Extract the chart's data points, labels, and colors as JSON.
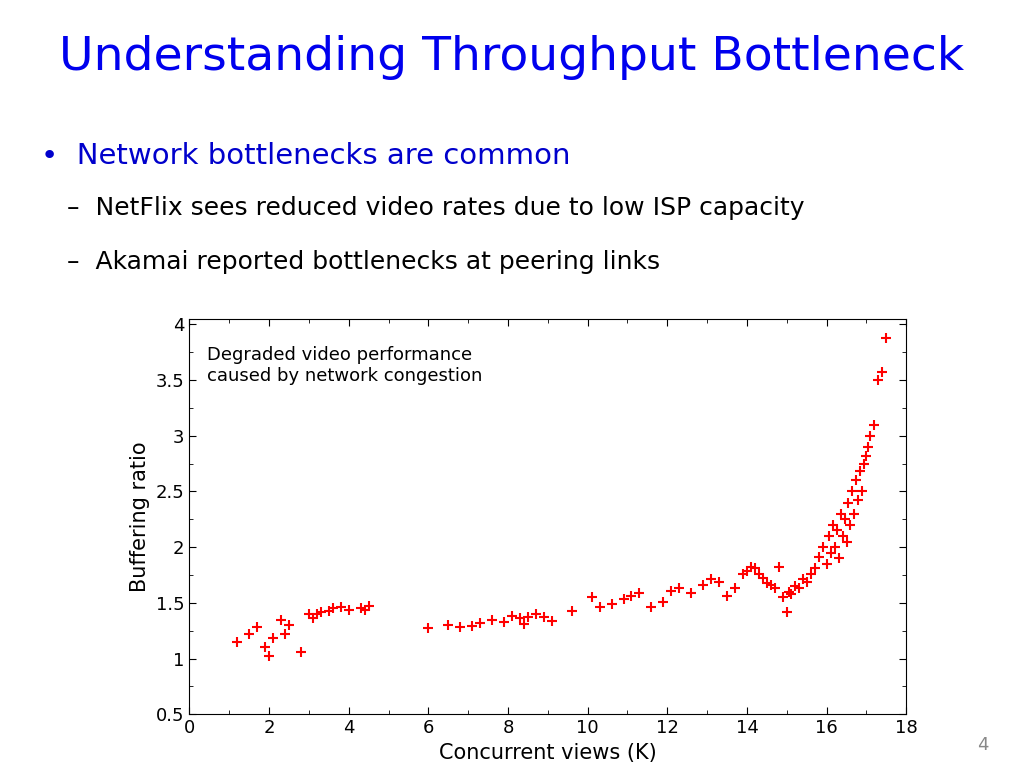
{
  "title": "Understanding Throughput Bottleneck",
  "title_color": "#0000EE",
  "title_fontsize": 34,
  "bullet_color": "#0000CC",
  "bullet_fontsize": 21,
  "sub_bullet_fontsize": 18,
  "background_color": "#FFFFFF",
  "bullet1": "Network bottlenecks are common",
  "sub1": "NetFlix sees reduced video rates due to low ISP capacity",
  "sub2": "Akamai reported bottlenecks at peering links",
  "xlabel": "Concurrent views (K)",
  "ylabel": "Buffering ratio",
  "annotation": "Degraded video performance\ncaused by network congestion",
  "xlim": [
    0,
    18
  ],
  "ylim": [
    0.5,
    4.05
  ],
  "xticks": [
    0,
    2,
    4,
    6,
    8,
    10,
    12,
    14,
    16,
    18
  ],
  "ytick_vals": [
    0.5,
    1.0,
    1.5,
    2.0,
    2.5,
    3.0,
    3.5,
    4.0
  ],
  "ytick_labels": [
    "0.5",
    "1",
    "1.5",
    "2",
    "2.5",
    "3",
    "3.5",
    "4"
  ],
  "scatter_color": "#FF0000",
  "page_number": "4",
  "scatter_x": [
    1.2,
    1.5,
    1.7,
    1.9,
    2.1,
    2.0,
    2.3,
    2.5,
    2.4,
    2.8,
    3.0,
    3.1,
    3.3,
    3.2,
    3.5,
    3.6,
    3.8,
    4.0,
    4.3,
    4.5,
    4.4,
    6.0,
    6.5,
    6.8,
    7.1,
    7.3,
    7.6,
    7.9,
    8.1,
    8.3,
    8.5,
    8.4,
    8.7,
    8.9,
    9.1,
    9.6,
    10.1,
    10.3,
    10.6,
    10.9,
    11.1,
    11.3,
    11.6,
    11.9,
    12.1,
    12.3,
    12.6,
    12.9,
    13.1,
    13.3,
    13.5,
    13.7,
    13.9,
    14.0,
    14.1,
    14.2,
    14.3,
    14.4,
    14.5,
    14.6,
    14.7,
    14.8,
    14.9,
    15.0,
    15.05,
    15.1,
    15.2,
    15.3,
    15.4,
    15.5,
    15.6,
    15.7,
    15.8,
    15.9,
    16.0,
    16.05,
    16.1,
    16.15,
    16.2,
    16.25,
    16.3,
    16.35,
    16.4,
    16.45,
    16.5,
    16.55,
    16.6,
    16.65,
    16.7,
    16.75,
    16.8,
    16.85,
    16.9,
    16.95,
    17.0,
    17.05,
    17.1,
    17.2,
    17.3,
    17.4,
    17.5
  ],
  "scatter_y": [
    1.15,
    1.22,
    1.28,
    1.1,
    1.18,
    1.02,
    1.35,
    1.3,
    1.22,
    1.06,
    1.4,
    1.36,
    1.42,
    1.4,
    1.43,
    1.45,
    1.46,
    1.44,
    1.45,
    1.47,
    1.44,
    1.27,
    1.3,
    1.28,
    1.29,
    1.32,
    1.35,
    1.33,
    1.38,
    1.36,
    1.37,
    1.31,
    1.4,
    1.37,
    1.34,
    1.43,
    1.55,
    1.46,
    1.49,
    1.53,
    1.56,
    1.59,
    1.46,
    1.51,
    1.61,
    1.63,
    1.59,
    1.66,
    1.71,
    1.69,
    1.56,
    1.63,
    1.76,
    1.79,
    1.82,
    1.81,
    1.76,
    1.72,
    1.68,
    1.66,
    1.63,
    1.82,
    1.55,
    1.42,
    1.6,
    1.58,
    1.65,
    1.63,
    1.71,
    1.69,
    1.76,
    1.81,
    1.91,
    2.0,
    1.85,
    2.1,
    1.95,
    2.2,
    2.0,
    2.15,
    1.9,
    2.3,
    2.1,
    2.25,
    2.05,
    2.4,
    2.2,
    2.5,
    2.3,
    2.6,
    2.42,
    2.68,
    2.5,
    2.75,
    2.82,
    2.9,
    3.0,
    3.1,
    3.5,
    3.57,
    3.88
  ]
}
